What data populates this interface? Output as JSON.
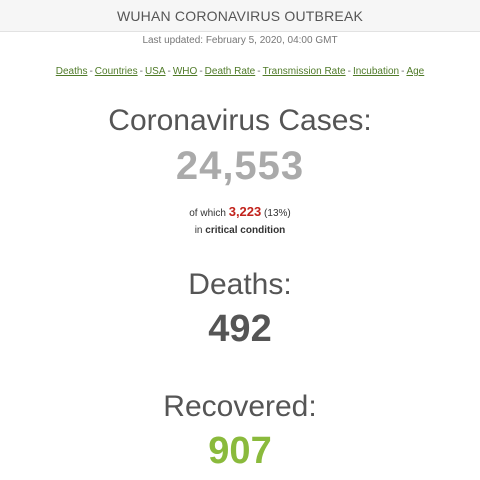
{
  "header": {
    "title": "WUHAN CORONAVIRUS OUTBREAK",
    "last_updated": "Last updated: February 5, 2020, 04:00 GMT"
  },
  "nav": {
    "separator": "-",
    "links": [
      "Deaths",
      "Countries",
      "USA",
      "WHO",
      "Death Rate",
      "Transmission Rate",
      "Incubation",
      "Age"
    ]
  },
  "cases": {
    "label": "Coronavirus Cases:",
    "value": "24,553",
    "critical_prefix": "of which",
    "critical_value": "3,223",
    "critical_percent": "(13%)",
    "critical_suffix_prefix": "in",
    "critical_suffix_bold": "critical condition"
  },
  "deaths": {
    "label": "Deaths:",
    "value": "492"
  },
  "recovered": {
    "label": "Recovered:",
    "value": "907"
  },
  "colors": {
    "nav_link": "#4f7a28",
    "cases_number": "#aaaaaa",
    "critical_number": "#c2231c",
    "deaths_number": "#555555",
    "recovered_number": "#8aba3c"
  }
}
